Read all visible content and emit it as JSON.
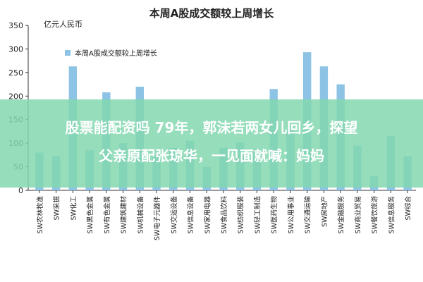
{
  "chart_data": {
    "type": "bar",
    "title": "本周A股成交额较上周增长",
    "unit_label": "亿元人民币",
    "legend": "本周A股成交额较上周增长",
    "categories": [
      "SW农林牧渔",
      "SW采掘",
      "SW化工",
      "SW黑色金属",
      "SW有色金属",
      "SW建筑建材",
      "SW机械设备",
      "SW电子元器件",
      "SW交运设备",
      "SW信息设备",
      "SW家用电器",
      "SW食品饮料",
      "SW纺织服装",
      "SW轻工制造",
      "SW医药生物",
      "SW公用事业",
      "SW交通运输",
      "SW房地产",
      "SW金融服务",
      "SW商业贸易",
      "SW餐饮旅游",
      "SW信息服务",
      "SW综合"
    ],
    "values": [
      80,
      72,
      263,
      85,
      208,
      100,
      220,
      75,
      90,
      105,
      50,
      90,
      102,
      88,
      215,
      130,
      293,
      263,
      225,
      95,
      30,
      115,
      72
    ],
    "ylim": [
      0,
      350
    ],
    "yticks": [
      0,
      50,
      100,
      150,
      200,
      250,
      300,
      350
    ],
    "bar_color": "#8dc3e4",
    "legend_position": "top-left",
    "grid": false
  },
  "overlay": {
    "line1": "股票能配资吗 79年，郭沫若两女儿回乡，探望",
    "line2": "父亲原配张琼华，一见面就喊：妈妈"
  }
}
